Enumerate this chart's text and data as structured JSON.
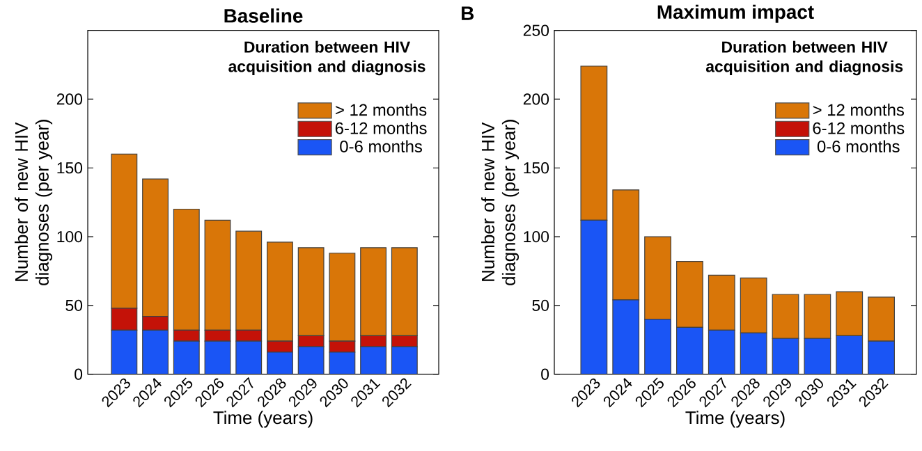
{
  "chart_data": [
    {
      "type": "bar",
      "title": "Baseline",
      "xlabel": "Time (years)",
      "ylabel": "Number of new HIV diagnoses (per year)",
      "legend_title": "Duration between HIV acquisition and diagnosis",
      "categories": [
        "2023",
        "2024",
        "2025",
        "2026",
        "2027",
        "2028",
        "2029",
        "2030",
        "2031",
        "2032"
      ],
      "series": [
        {
          "name": "0-6 months",
          "color": "#1a55f5",
          "values": [
            32,
            32,
            24,
            24,
            24,
            16,
            20,
            16,
            20,
            20
          ]
        },
        {
          "name": "6-12 months",
          "color": "#c41208",
          "values": [
            16,
            10,
            8,
            8,
            8,
            8,
            8,
            8,
            8,
            8
          ]
        },
        {
          "name": "> 12 months",
          "color": "#d97608",
          "values": [
            112,
            100,
            88,
            80,
            72,
            72,
            64,
            64,
            64,
            64
          ]
        }
      ],
      "stacked": true,
      "ylim": [
        0,
        250
      ],
      "yticks": [
        0,
        50,
        100,
        150,
        200
      ],
      "legend": "top right"
    },
    {
      "type": "bar",
      "title": "Maximum impact",
      "xlabel": "Time (years)",
      "ylabel": "Number of new HIV diagnoses (per year)",
      "legend_title": "Duration between HIV acquisition and diagnosis",
      "categories": [
        "2023",
        "2024",
        "2025",
        "2026",
        "2027",
        "2028",
        "2029",
        "2030",
        "2031",
        "2032"
      ],
      "series": [
        {
          "name": "0-6 months",
          "color": "#1a55f5",
          "values": [
            112,
            54,
            40,
            34,
            32,
            30,
            26,
            26,
            28,
            24
          ]
        },
        {
          "name": "6-12 months",
          "color": "#c41208",
          "values": [
            0,
            0,
            0,
            0,
            0,
            0,
            0,
            0,
            0,
            0
          ]
        },
        {
          "name": "> 12 months",
          "color": "#d97608",
          "values": [
            112,
            80,
            60,
            48,
            40,
            40,
            32,
            32,
            32,
            32
          ]
        }
      ],
      "stacked": true,
      "ylim": [
        0,
        250
      ],
      "yticks": [
        0,
        50,
        100,
        150,
        200,
        250
      ],
      "legend": "top right",
      "annotations": [
        "B"
      ]
    }
  ]
}
